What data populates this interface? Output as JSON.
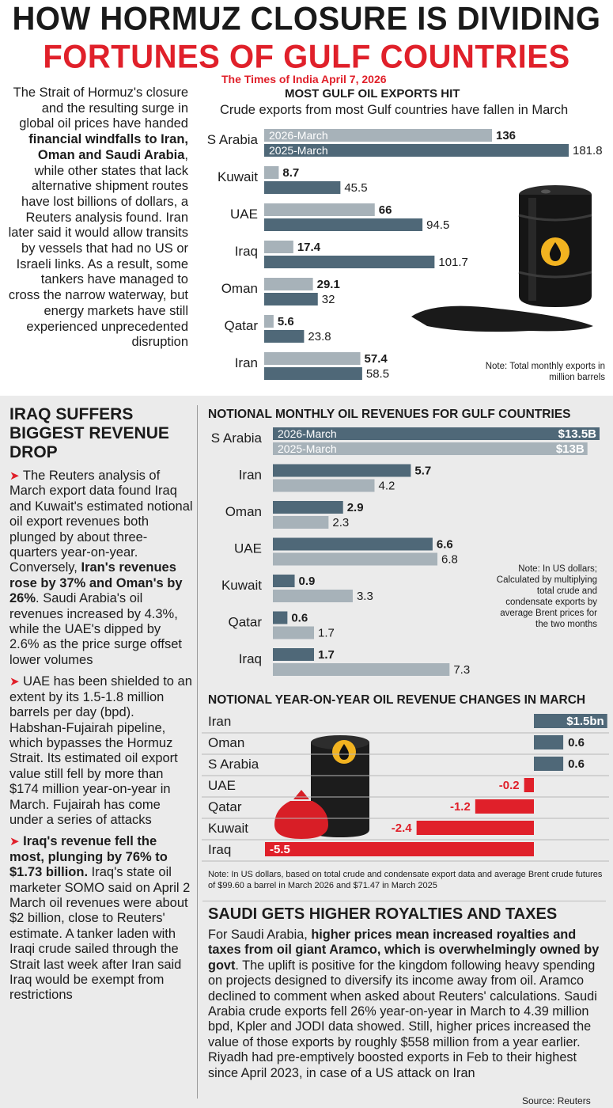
{
  "headline": {
    "line1": "HOW HORMUZ CLOSURE IS DIVIDING",
    "line2": "FORTUNES OF GULF COUNTRIES",
    "dateline": "The Times of India April 7, 2026"
  },
  "intro": {
    "text_a": "The Strait of Hormuz's closure and the resulting surge in global oil prices have handed ",
    "bold_a": "financial windfalls to Iran, Oman and Saudi Arabia",
    "text_b": ", while other states that lack alternative shipment routes have lost billions of dollars, a Reuters analysis found. Iran later said it would allow transits by vessels that had no US or Israeli links. As a result, some tankers have managed to cross the narrow waterway, but energy markets have still experienced unprecedented disruption"
  },
  "left_column": {
    "title": "IRAQ SUFFERS BIGGEST REVENUE DROP",
    "bullet": "➤",
    "p1_text": " The Reuters analysis of March export data found Iraq and Kuwait's estimated notional oil export revenues both plunged by about three-quarters year-on-year. Conversely, ",
    "p1_bold": "Iran's revenues rose by 37% and Oman's by 26%",
    "p1_text2": ". Saudi Arabia's oil revenues increased by 4.3%, while the UAE's dipped by 2.6% as the price surge offset lower volumes",
    "p2_text": " UAE has been shielded to an extent by its 1.5-1.8 million barrels per day (bpd). Habshan-Fujairah pipeline, which bypasses the Hormuz Strait. Its estimated oil export value still fell by more than $174 million year-on-year in March. Fujairah has come under a series of attacks",
    "p3_bold": "Iraq's revenue fell the most, plunging by 76% to $1.73 billion.",
    "p3_text": " Iraq's state oil marketer SOMO said on April 2 March oil revenues were about $2 billion, close to Reuters' estimate. A tanker laden with Iraqi crude sailed through the Strait last week after Iran said Iraq would be exempt from restrictions"
  },
  "saudi": {
    "title": "SAUDI GETS HIGHER ROYALTIES AND TAXES",
    "text_a": "For Saudi Arabia, ",
    "bold": "higher prices mean increased royalties and taxes from oil giant Aramco, which is overwhelmingly owned by govt",
    "text_b": ". The uplift is positive for the kingdom following heavy spending on projects designed to diversify its income away from oil. Aramco declined to comment when asked about Reuters' calculations. Saudi Arabia crude exports fell 26% year-on-year in March to 4.39 million bpd, Kpler and JODI data showed. Still, higher prices increased the value of those exports by roughly $558 million from a year earlier. Riyadh had pre-emptively boosted exports in Feb to their highest since April 2023, in case of a US attack on Iran"
  },
  "source": "Source: Reuters",
  "colors": {
    "red": "#e0202a",
    "dark_bar": "#4f6878",
    "light_bar": "#a7b2b9",
    "panel_gray": "#ebebeb"
  },
  "chart_data": [
    {
      "type": "bar",
      "orientation": "horizontal",
      "title": "MOST GULF OIL EXPORTS HIT",
      "subtitle": "Crude exports from most Gulf countries have fallen in March",
      "note": "Note: Total monthly exports in million barrels",
      "categories": [
        "S Arabia",
        "Kuwait",
        "UAE",
        "Iraq",
        "Oman",
        "Qatar",
        "Iran"
      ],
      "series": [
        {
          "name": "2026-March",
          "values": [
            136,
            8.7,
            66,
            17.4,
            29.1,
            5.6,
            57.4
          ],
          "labels": [
            "136",
            "8.7",
            "66",
            "17.4",
            "29.1",
            "5.6",
            "57.4"
          ]
        },
        {
          "name": "2025-March",
          "values": [
            181.8,
            45.5,
            94.5,
            101.7,
            32,
            23.8,
            58.5
          ],
          "labels": [
            "181.8",
            "45.5",
            "94.5",
            "101.7",
            "32",
            "23.8",
            "58.5"
          ]
        }
      ],
      "xlim": [
        0,
        181.8
      ]
    },
    {
      "type": "bar",
      "orientation": "horizontal",
      "title": "NOTIONAL MONTHLY OIL REVENUES FOR GULF COUNTRIES",
      "note": "Note: In US dollars; Calculated by multiplying total crude and condensate exports by average Brent prices for the two months",
      "categories": [
        "S Arabia",
        "Iran",
        "Oman",
        "UAE",
        "Kuwait",
        "Qatar",
        "Iraq"
      ],
      "series": [
        {
          "name": "2026-March",
          "values": [
            13.5,
            5.7,
            2.9,
            6.6,
            0.9,
            0.6,
            1.7
          ],
          "labels": [
            "$13.5B",
            "5.7",
            "2.9",
            "6.6",
            "0.9",
            "0.6",
            "1.7"
          ]
        },
        {
          "name": "2025-March",
          "values": [
            13,
            4.2,
            2.3,
            6.8,
            3.3,
            1.7,
            7.3
          ],
          "labels": [
            "$13B",
            "4.2",
            "2.3",
            "6.8",
            "3.3",
            "1.7",
            "7.3"
          ]
        }
      ],
      "xlim": [
        0,
        13.5
      ]
    },
    {
      "type": "bar",
      "orientation": "horizontal",
      "title": "NOTIONAL YEAR-ON-YEAR OIL REVENUE CHANGES IN MARCH",
      "note": "Note: In US dollars, based on total crude and condensate export data and average Brent crude futures of $99.60 a barrel in March 2026 and $71.47 in March 2025",
      "categories": [
        "Iran",
        "Oman",
        "S Arabia",
        "UAE",
        "Qatar",
        "Kuwait",
        "Iraq"
      ],
      "values": [
        1.5,
        0.6,
        0.6,
        -0.2,
        -1.2,
        -2.4,
        -5.5
      ],
      "labels": [
        "$1.5bn",
        "0.6",
        "0.6",
        "-0.2",
        "-1.2",
        "-2.4",
        "-5.5"
      ],
      "xlim": [
        -5.5,
        1.5
      ]
    }
  ]
}
